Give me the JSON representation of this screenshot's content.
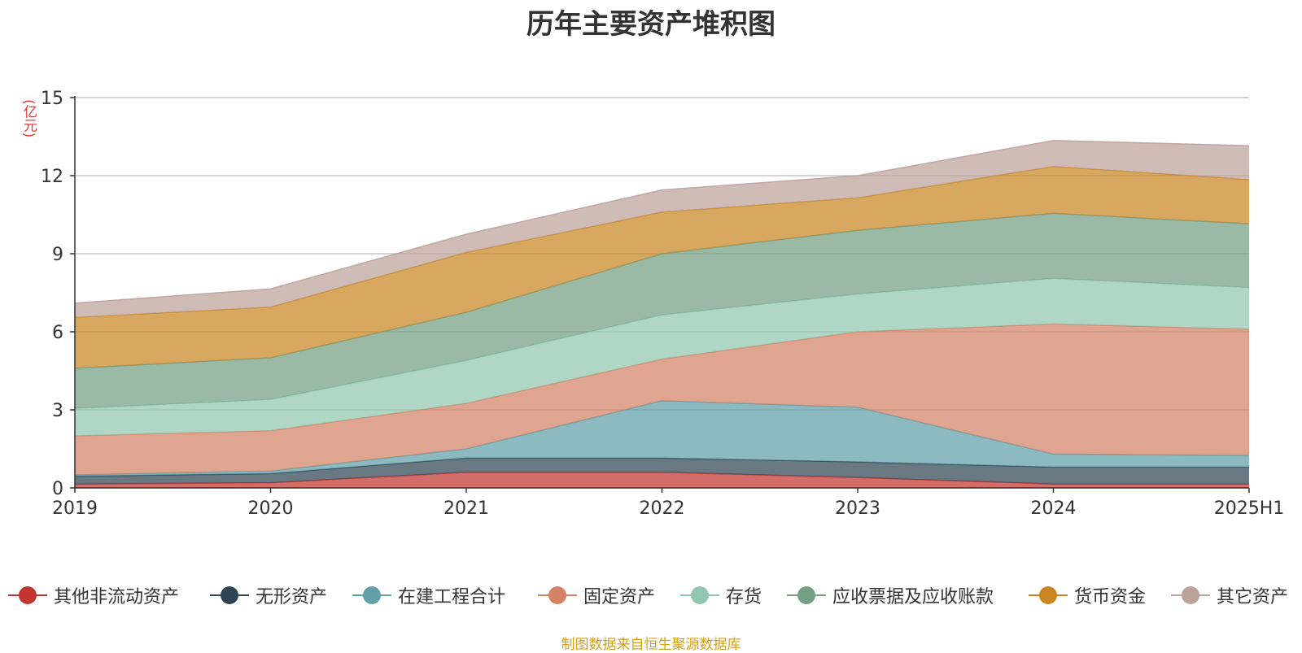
{
  "chart_data": {
    "type": "area",
    "stacked": true,
    "title": "历年主要资产堆积图",
    "ylabel": "(亿元)",
    "xlabel": "",
    "categories": [
      "2019",
      "2020",
      "2021",
      "2022",
      "2023",
      "2024",
      "2025H1"
    ],
    "ylim": [
      0,
      15
    ],
    "yticks": [
      0,
      3,
      6,
      9,
      12,
      15
    ],
    "grid": true,
    "legend_position": "bottom",
    "series": [
      {
        "name": "其他非流动资产",
        "color": "#c23531",
        "values": [
          0.15,
          0.2,
          0.6,
          0.6,
          0.4,
          0.15,
          0.15
        ]
      },
      {
        "name": "无形资产",
        "color": "#2f4554",
        "values": [
          0.3,
          0.35,
          0.55,
          0.55,
          0.6,
          0.65,
          0.65
        ]
      },
      {
        "name": "在建工程合计",
        "color": "#61a0a8",
        "values": [
          0.05,
          0.1,
          0.35,
          2.2,
          2.1,
          0.5,
          0.45
        ]
      },
      {
        "name": "固定资产",
        "color": "#d48265",
        "values": [
          1.5,
          1.55,
          1.75,
          1.6,
          2.9,
          5.0,
          4.85
        ]
      },
      {
        "name": "存货",
        "color": "#91c7ae",
        "values": [
          1.05,
          1.2,
          1.65,
          1.7,
          1.45,
          1.75,
          1.6
        ]
      },
      {
        "name": "应收票据及应收账款",
        "color": "#749f83",
        "values": [
          1.55,
          1.6,
          1.85,
          2.35,
          2.45,
          2.5,
          2.45
        ]
      },
      {
        "name": "货币资金",
        "color": "#ca8622",
        "values": [
          1.95,
          1.95,
          2.3,
          1.6,
          1.25,
          1.8,
          1.7
        ]
      },
      {
        "name": "其它资产",
        "color": "#bda29a",
        "values": [
          0.55,
          0.7,
          0.7,
          0.85,
          0.85,
          1.0,
          1.3
        ]
      }
    ]
  },
  "footer_note": "制图数据来自恒生聚源数据库"
}
